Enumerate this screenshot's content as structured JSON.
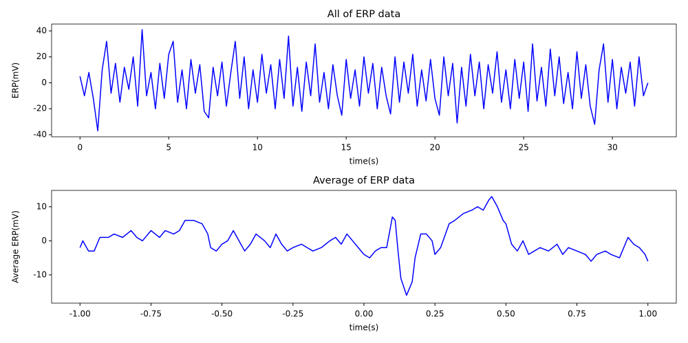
{
  "chart_data": [
    {
      "type": "line",
      "title": "All of ERP data",
      "x_label": "time(s)",
      "y_label": "ERP(mV)",
      "xlim": [
        -1.6,
        33.6
      ],
      "ylim": [
        -41.6,
        45.3
      ],
      "xticks": [
        0,
        5,
        10,
        15,
        20,
        25,
        30
      ],
      "yticks": [
        -40,
        -20,
        0,
        20,
        40
      ],
      "series": [
        {
          "name": "ERP",
          "color": "#0000ff",
          "x": [
            0,
            0.25,
            0.5,
            0.75,
            1,
            1.25,
            1.5,
            1.75,
            2,
            2.25,
            2.5,
            2.75,
            3,
            3.25,
            3.5,
            3.75,
            4,
            4.25,
            4.5,
            4.75,
            5,
            5.25,
            5.5,
            5.75,
            6,
            6.25,
            6.5,
            6.75,
            7,
            7.25,
            7.5,
            7.75,
            8,
            8.25,
            8.5,
            8.75,
            9,
            9.25,
            9.5,
            9.75,
            10,
            10.25,
            10.5,
            10.75,
            11,
            11.25,
            11.5,
            11.75,
            12,
            12.25,
            12.5,
            12.75,
            13,
            13.25,
            13.5,
            13.75,
            14,
            14.25,
            14.5,
            14.75,
            15,
            15.25,
            15.5,
            15.75,
            16,
            16.25,
            16.5,
            16.75,
            17,
            17.25,
            17.5,
            17.75,
            18,
            18.25,
            18.5,
            18.75,
            19,
            19.25,
            19.5,
            19.75,
            20,
            20.25,
            20.5,
            20.75,
            21,
            21.25,
            21.5,
            21.75,
            22,
            22.25,
            22.5,
            22.75,
            23,
            23.25,
            23.5,
            23.75,
            24,
            24.25,
            24.5,
            24.75,
            25,
            25.25,
            25.5,
            25.75,
            26,
            26.25,
            26.5,
            26.75,
            27,
            27.25,
            27.5,
            27.75,
            28,
            28.25,
            28.5,
            28.75,
            29,
            29.25,
            29.5,
            29.75,
            30,
            30.25,
            30.5,
            30.75,
            31,
            31.25,
            31.5,
            31.75,
            32
          ],
          "values": [
            5,
            -10,
            8,
            -12,
            -37,
            10,
            32,
            -8,
            15,
            -15,
            12,
            -5,
            20,
            -18,
            41,
            -10,
            8,
            -20,
            15,
            -12,
            22,
            32,
            -15,
            10,
            -20,
            18,
            -8,
            14,
            -22,
            -27,
            12,
            -10,
            16,
            -18,
            8,
            32,
            -12,
            20,
            -20,
            10,
            -15,
            22,
            -8,
            14,
            -20,
            18,
            -12,
            36,
            -18,
            12,
            -22,
            16,
            -10,
            30,
            -15,
            8,
            -20,
            14,
            -10,
            -25,
            18,
            -12,
            10,
            -18,
            20,
            -8,
            15,
            -20,
            12,
            -10,
            -24,
            20,
            -15,
            16,
            -8,
            22,
            -18,
            10,
            -14,
            18,
            -12,
            -25,
            20,
            -10,
            15,
            -31,
            12,
            -18,
            22,
            -10,
            16,
            -20,
            14,
            -8,
            24,
            -15,
            10,
            -20,
            18,
            -12,
            16,
            -22,
            30,
            -14,
            12,
            -18,
            26,
            -10,
            20,
            -16,
            8,
            -20,
            24,
            -12,
            14,
            -18,
            -32,
            10,
            30,
            -15,
            18,
            -20,
            12,
            -8,
            16,
            -18,
            20,
            -10,
            0
          ]
        }
      ]
    },
    {
      "type": "line",
      "title": "Average of ERP data",
      "x_label": "time(s)",
      "y_label": "Average ERP(mV)",
      "xlim": [
        -1.1,
        1.1
      ],
      "ylim": [
        -18.3,
        14.8
      ],
      "xticks": [
        {
          "value": -1,
          "label": "-1.00"
        },
        {
          "value": -0.75,
          "label": "-0.75"
        },
        {
          "value": -0.5,
          "label": "-0.50"
        },
        {
          "value": -0.25,
          "label": "-0.25"
        },
        {
          "value": 0,
          "label": "0.00"
        },
        {
          "value": 0.25,
          "label": "0.25"
        },
        {
          "value": 0.5,
          "label": "0.50"
        },
        {
          "value": 0.75,
          "label": "0.75"
        },
        {
          "value": 1,
          "label": "1.00"
        }
      ],
      "yticks": [
        -10,
        0,
        10
      ],
      "series": [
        {
          "name": "Average ERP",
          "color": "#0000ff",
          "x": [
            -1,
            -0.99,
            -0.97,
            -0.95,
            -0.93,
            -0.9,
            -0.88,
            -0.85,
            -0.82,
            -0.8,
            -0.78,
            -0.75,
            -0.72,
            -0.7,
            -0.67,
            -0.65,
            -0.63,
            -0.6,
            -0.57,
            -0.55,
            -0.54,
            -0.52,
            -0.5,
            -0.48,
            -0.46,
            -0.44,
            -0.42,
            -0.4,
            -0.38,
            -0.35,
            -0.33,
            -0.31,
            -0.29,
            -0.27,
            -0.25,
            -0.22,
            -0.2,
            -0.18,
            -0.15,
            -0.12,
            -0.1,
            -0.08,
            -0.06,
            -0.04,
            -0.02,
            0,
            0.02,
            0.04,
            0.06,
            0.08,
            0.1,
            0.11,
            0.12,
            0.13,
            0.15,
            0.17,
            0.18,
            0.2,
            0.22,
            0.24,
            0.25,
            0.27,
            0.3,
            0.32,
            0.35,
            0.38,
            0.4,
            0.42,
            0.44,
            0.45,
            0.47,
            0.49,
            0.5,
            0.52,
            0.54,
            0.56,
            0.58,
            0.6,
            0.62,
            0.65,
            0.68,
            0.7,
            0.72,
            0.75,
            0.78,
            0.8,
            0.82,
            0.85,
            0.87,
            0.9,
            0.93,
            0.95,
            0.97,
            0.99,
            1
          ],
          "values": [
            -2,
            0,
            -3,
            -3,
            1,
            1,
            2,
            1,
            3,
            1,
            0,
            3,
            1,
            3,
            2,
            3,
            6,
            6,
            5,
            2,
            -2,
            -3,
            -1,
            0,
            3,
            0,
            -3,
            -1,
            2,
            0,
            -2,
            2,
            -1,
            -3,
            -2,
            -1,
            -2,
            -3,
            -2,
            0,
            1,
            -1,
            2,
            0,
            -2,
            -4,
            -5,
            -3,
            -2,
            -2,
            7,
            6,
            -3,
            -11,
            -16,
            -12,
            -5,
            2,
            2,
            0,
            -4,
            -2,
            5,
            6,
            8,
            9,
            10,
            9,
            12,
            13,
            10,
            6,
            5,
            -1,
            -3,
            0,
            -4,
            -3,
            -2,
            -3,
            -1,
            -4,
            -2,
            -3,
            -4,
            -6,
            -4,
            -3,
            -4,
            -5,
            1,
            -1,
            -2,
            -4,
            -6
          ]
        }
      ]
    }
  ]
}
